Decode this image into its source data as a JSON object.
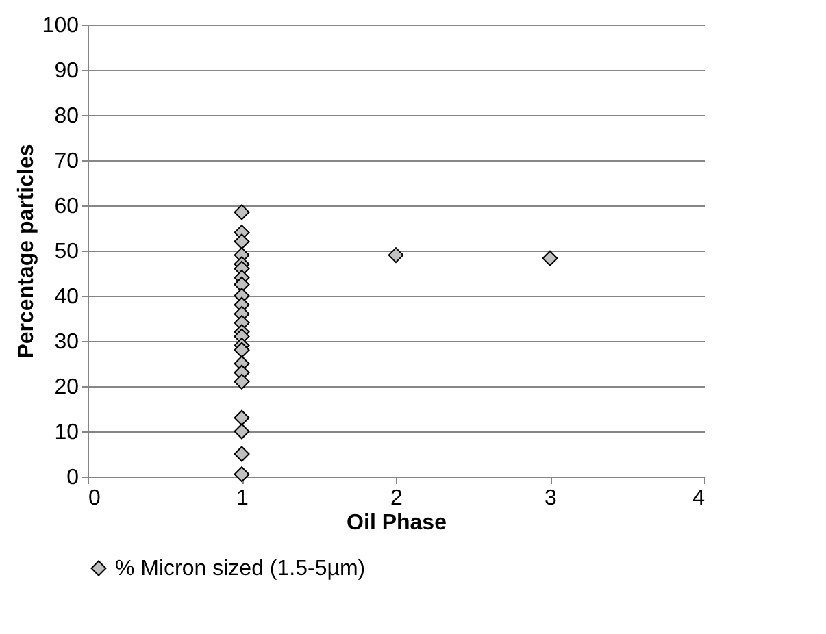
{
  "chart_data": {
    "type": "scatter",
    "xlabel": "Oil Phase",
    "ylabel": "Percentage particles",
    "x": [
      1,
      1,
      1,
      1,
      1,
      1,
      1,
      1,
      1,
      1,
      1,
      1,
      1,
      1,
      1,
      1,
      1,
      1,
      1,
      1,
      1,
      1,
      1,
      2,
      3
    ],
    "series": [
      {
        "name": "% Micron sized (1.5-5µm)",
        "color": "#c0c0c0",
        "values": [
          58.5,
          54,
          52,
          49,
          47,
          46,
          44,
          42.5,
          40,
          38,
          36,
          34,
          32,
          31,
          29,
          28,
          25,
          23,
          21,
          13,
          10,
          5,
          0.5,
          49,
          48.3
        ]
      }
    ],
    "xlim": [
      0,
      4
    ],
    "xticks": [
      0,
      1,
      2,
      3,
      4
    ],
    "ylim": [
      0,
      100
    ],
    "yticks": [
      0,
      10,
      20,
      30,
      40,
      50,
      60,
      70,
      80,
      90,
      100
    ],
    "grid": "y",
    "legend": "bottom",
    "marker": "diamond"
  }
}
